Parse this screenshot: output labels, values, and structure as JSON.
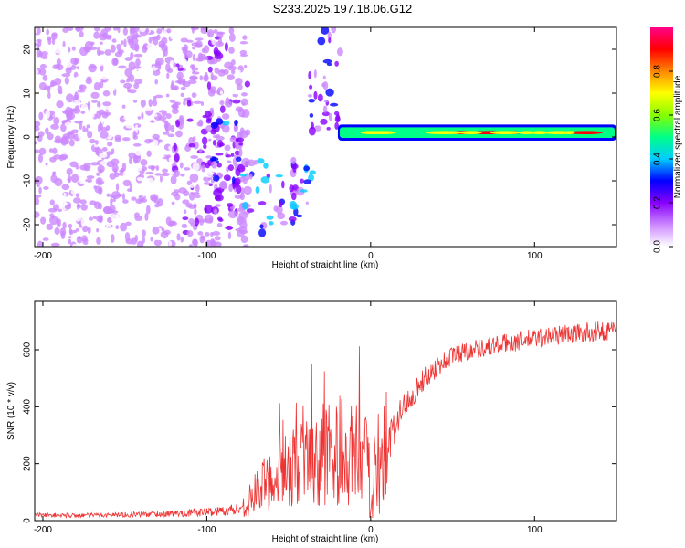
{
  "title": "S233.2025.197.18.06.G12",
  "chart_data": [
    {
      "type": "heatmap",
      "xlabel": "Height of straight line (km)",
      "ylabel": "Frequency (Hz)",
      "xlim": [
        -205,
        150
      ],
      "ylim": [
        -25,
        25
      ],
      "xticks": [
        -200,
        -100,
        0,
        100
      ],
      "xtick_labels": [
        "-200",
        "-100",
        "0",
        "100"
      ],
      "yticks": [
        -20,
        -10,
        0,
        10,
        20
      ],
      "ytick_labels": [
        "-20",
        "-10",
        "0",
        "10",
        "20"
      ],
      "colorbar": {
        "label": "Normalized spectral amplitude",
        "range": [
          0,
          1
        ],
        "ticks": [
          "0.0",
          "0.2",
          "0.4",
          "0.6",
          "0.8"
        ],
        "colors": [
          "#ffffff",
          "#cc88ff",
          "#8800ff",
          "#0000ff",
          "#00ccff",
          "#00ff88",
          "#88ff00",
          "#ffff00",
          "#ff8800",
          "#ff0000",
          "#ff0088"
        ]
      },
      "regions": [
        {
          "desc": "diffuse noise",
          "x": [
            -205,
            -120
          ],
          "y": [
            -25,
            25
          ],
          "level": 0.08
        },
        {
          "desc": "noise patches",
          "x": [
            -120,
            -75
          ],
          "y": [
            -25,
            25
          ],
          "level": 0.12
        },
        {
          "desc": "blobs",
          "x": [
            -100,
            -78
          ],
          "y": [
            -12,
            4
          ],
          "level": 0.25
        },
        {
          "desc": "blobs",
          "x": [
            -80,
            -35
          ],
          "y": [
            -22,
            -5
          ],
          "level": 0.3
        },
        {
          "desc": "streak",
          "x": [
            -38,
            -18
          ],
          "y": [
            0,
            25
          ],
          "level": 0.2
        },
        {
          "desc": "main signal",
          "x": [
            -20,
            150
          ],
          "y": [
            0,
            2
          ],
          "level": 0.85
        }
      ]
    },
    {
      "type": "line",
      "xlabel": "Height of straight line (km)",
      "ylabel": "SNR (10 * v/v)",
      "xlim": [
        -205,
        150
      ],
      "ylim": [
        0,
        770
      ],
      "xticks": [
        -200,
        -100,
        0,
        100
      ],
      "xtick_labels": [
        "-200",
        "-100",
        "0",
        "100"
      ],
      "yticks": [
        0,
        200,
        400,
        600
      ],
      "ytick_labels": [
        "0",
        "200",
        "400",
        "600"
      ],
      "series": [
        {
          "color": "#ee3333",
          "x": [
            -205,
            -180,
            -160,
            -140,
            -120,
            -100,
            -90,
            -80,
            -75,
            -70,
            -60,
            -50,
            -40,
            -30,
            -20,
            -10,
            0,
            5,
            10,
            12,
            15,
            20,
            30,
            40,
            50,
            60,
            70,
            80,
            90,
            100,
            110,
            120,
            130,
            140,
            150
          ],
          "values": [
            20,
            18,
            20,
            22,
            25,
            30,
            35,
            40,
            60,
            100,
            150,
            180,
            200,
            230,
            250,
            220,
            180,
            170,
            160,
            280,
            340,
            400,
            480,
            540,
            580,
            600,
            610,
            620,
            630,
            640,
            650,
            655,
            660,
            665,
            670
          ],
          "noise": [
            8,
            8,
            8,
            10,
            12,
            15,
            18,
            25,
            50,
            80,
            110,
            130,
            150,
            180,
            200,
            200,
            180,
            150,
            140,
            80,
            60,
            50,
            40,
            40,
            35,
            35,
            35,
            35,
            35,
            35,
            35,
            35,
            35,
            35,
            35
          ]
        }
      ]
    }
  ]
}
